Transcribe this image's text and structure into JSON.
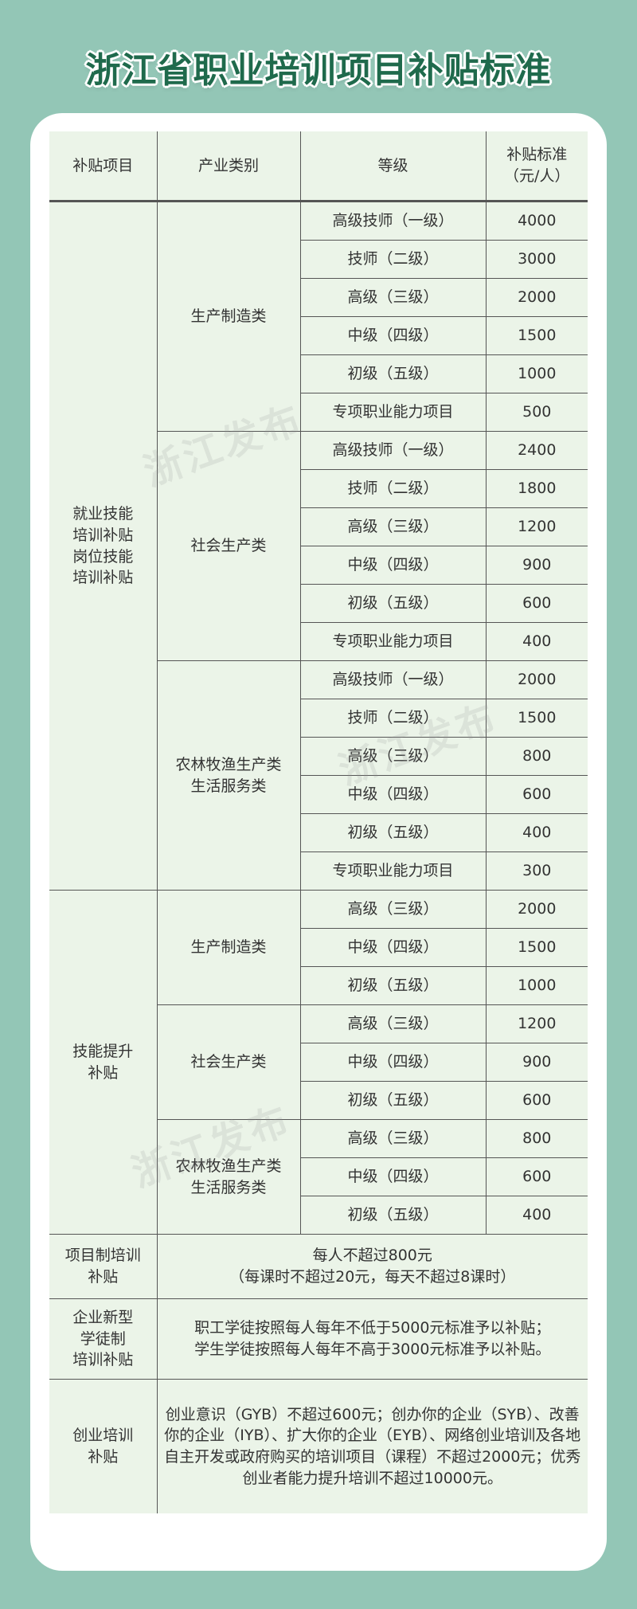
{
  "title": "浙江省职业培训项目补贴标准",
  "watermark": "浙江发布",
  "colors": {
    "background": "#93c6b6",
    "title": "#1f6a4c",
    "table": "#ebf4e8"
  },
  "headers": [
    "补贴项目",
    "产业类别",
    "等级",
    "补贴标准\n（元/人）"
  ],
  "sections": [
    {
      "item": "就业技能\n培训补贴\n岗位技能\n培训补贴",
      "categories": [
        {
          "name": "生产制造类",
          "grades": [
            [
              "高级技师（一级）",
              "4000"
            ],
            [
              "技师（二级）",
              "3000"
            ],
            [
              "高级（三级）",
              "2000"
            ],
            [
              "中级（四级）",
              "1500"
            ],
            [
              "初级（五级）",
              "1000"
            ],
            [
              "专项职业能力项目",
              "500"
            ]
          ]
        },
        {
          "name": "社会生产类",
          "grades": [
            [
              "高级技师（一级）",
              "2400"
            ],
            [
              "技师（二级）",
              "1800"
            ],
            [
              "高级（三级）",
              "1200"
            ],
            [
              "中级（四级）",
              "900"
            ],
            [
              "初级（五级）",
              "600"
            ],
            [
              "专项职业能力项目",
              "400"
            ]
          ]
        },
        {
          "name": "农林牧渔生产类\n生活服务类",
          "grades": [
            [
              "高级技师（一级）",
              "2000"
            ],
            [
              "技师（二级）",
              "1500"
            ],
            [
              "高级（三级）",
              "800"
            ],
            [
              "中级（四级）",
              "600"
            ],
            [
              "初级（五级）",
              "400"
            ],
            [
              "专项职业能力项目",
              "300"
            ]
          ]
        }
      ]
    },
    {
      "item": "技能提升\n补贴",
      "categories": [
        {
          "name": "生产制造类",
          "grades": [
            [
              "高级（三级）",
              "2000"
            ],
            [
              "中级（四级）",
              "1500"
            ],
            [
              "初级（五级）",
              "1000"
            ]
          ]
        },
        {
          "name": "社会生产类",
          "grades": [
            [
              "高级（三级）",
              "1200"
            ],
            [
              "中级（四级）",
              "900"
            ],
            [
              "初级（五级）",
              "600"
            ]
          ]
        },
        {
          "name": "农林牧渔生产类\n生活服务类",
          "grades": [
            [
              "高级（三级）",
              "800"
            ],
            [
              "中级（四级）",
              "600"
            ],
            [
              "初级（五级）",
              "400"
            ]
          ]
        }
      ]
    }
  ],
  "others": [
    {
      "item": "项目制培训\n补贴",
      "text": "每人不超过800元\n（每课时不超过20元，每天不超过8课时）",
      "height": 80
    },
    {
      "item": "企业新型\n学徒制\n培训补贴",
      "text": "职工学徒按照每人每年不低于5000元标准予以补贴；\n学生学徒按照每人每年不高于3000元标准予以补贴。",
      "height": 100
    },
    {
      "item": "创业培训\n补贴",
      "text": "创业意识（GYB）不超过600元；创办你的企业（SYB）、改善你的企业（IYB）、扩大你的企业（EYB）、网络创业培训及各地自主开发或政府购买的培训项目（课程）不超过2000元；优秀创业者能力提升培训不超过10000元。",
      "height": 168
    }
  ]
}
